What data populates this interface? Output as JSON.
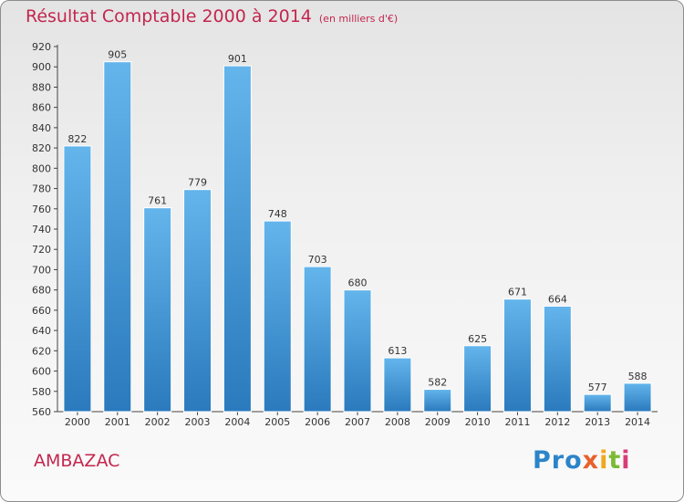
{
  "title": "Résultat Comptable 2000 à 2014",
  "subtitle": "(en milliers d'€)",
  "town": "AMBAZAC",
  "logo": [
    "Pro",
    "x",
    "i",
    "t",
    "i"
  ],
  "colors": {
    "bar_light": "#63b3ea",
    "bar_dark": "#2a7bbf",
    "title": "#c3264e"
  },
  "chart_data": {
    "type": "bar",
    "title": "Résultat Comptable 2000 à 2014",
    "subtitle": "(en milliers d'€)",
    "categories": [
      "2000",
      "2001",
      "2002",
      "2003",
      "2004",
      "2005",
      "2006",
      "2007",
      "2008",
      "2009",
      "2010",
      "2011",
      "2012",
      "2013",
      "2014"
    ],
    "values": [
      822,
      905,
      761,
      779,
      901,
      748,
      703,
      680,
      613,
      582,
      625,
      671,
      664,
      577,
      588
    ],
    "ylim": [
      560,
      920
    ],
    "ytick_step": 20,
    "grid": false
  }
}
